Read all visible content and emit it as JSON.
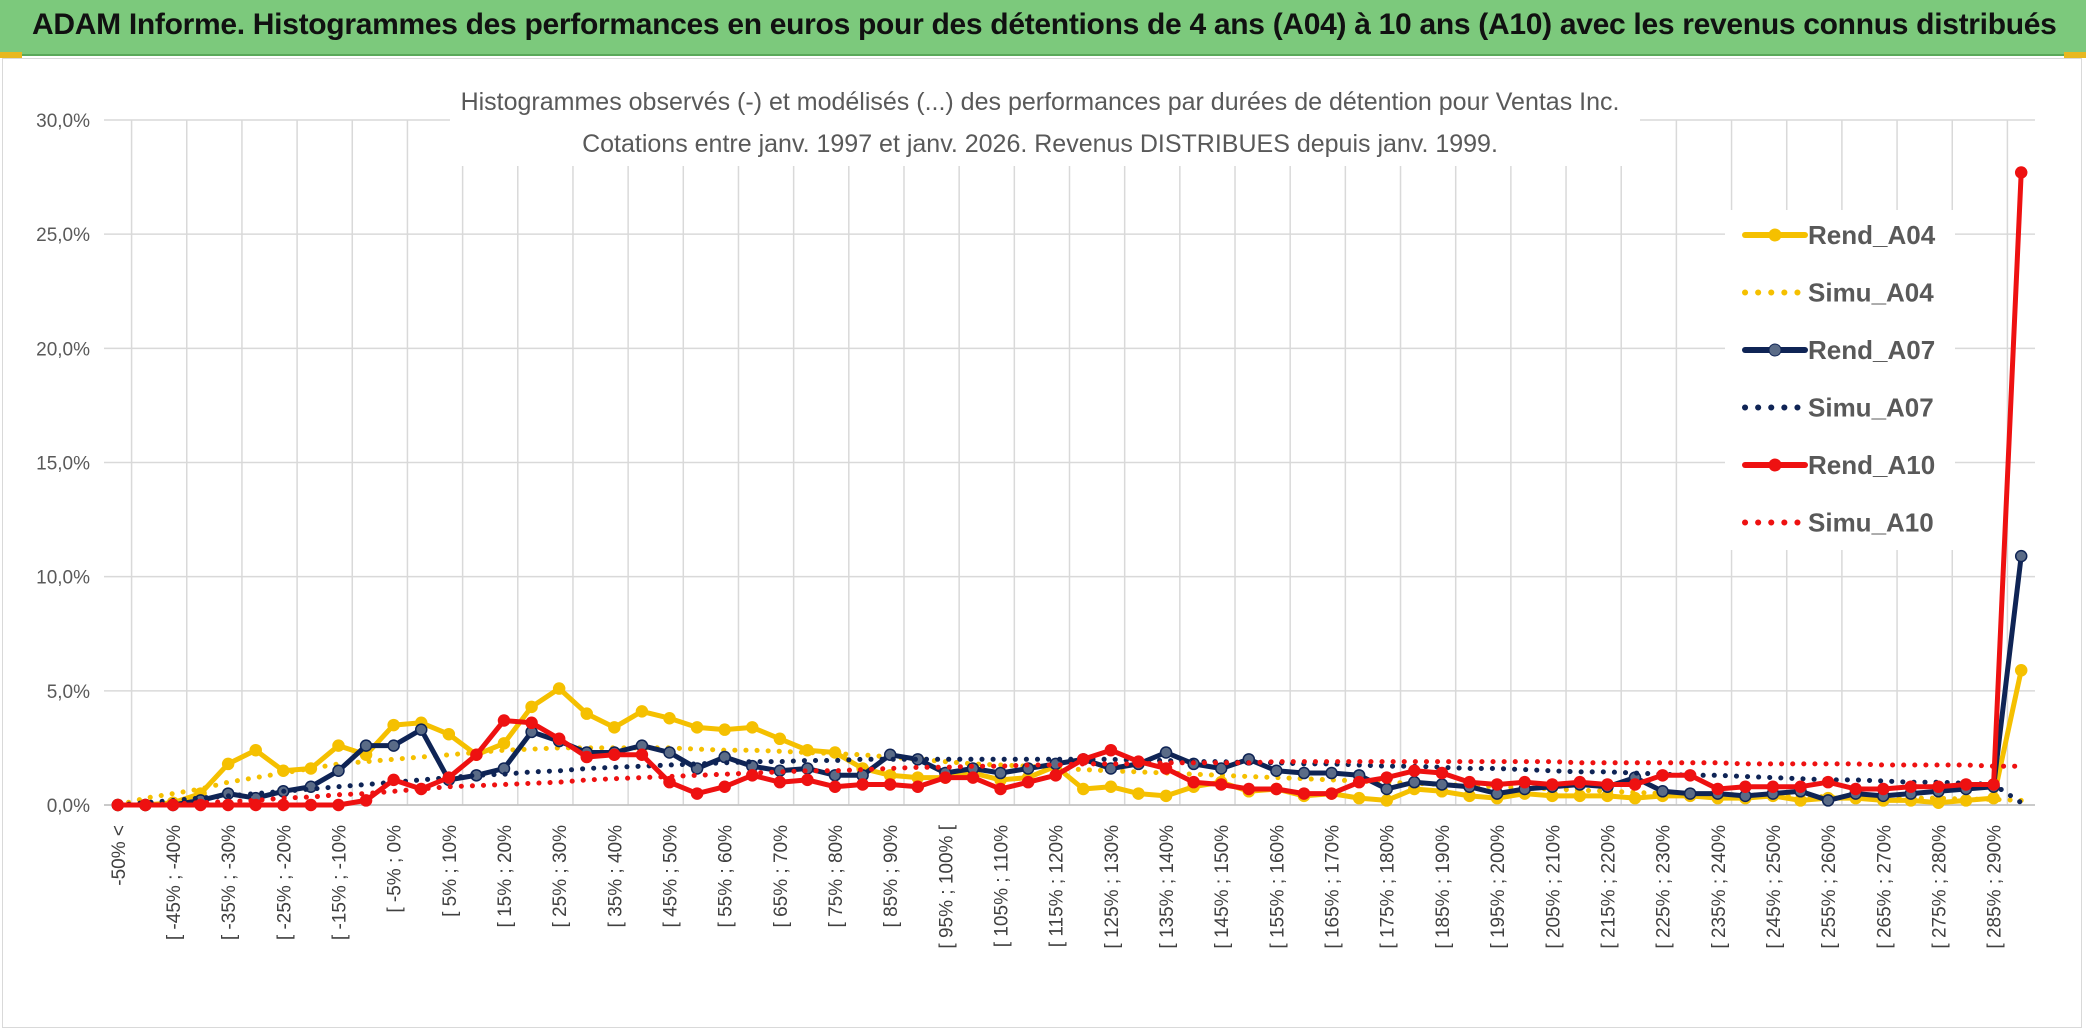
{
  "header": {
    "title": "ADAM Informe. Histogrammes des performances en euros pour des détentions de 4 ans (A04) à 10 ans (A10) avec les revenus connus distribués"
  },
  "chart_data": {
    "type": "line",
    "title_line1": "Histogrammes observés (-) et modélisés (...) des performances par durées de détention pour Ventas Inc.",
    "title_line2": "Cotations entre janv. 1997 et janv. 2026. Revenus DISTRIBUES depuis janv. 1999.",
    "ylim": [
      0,
      30
    ],
    "yticks": [
      "0,0%",
      "5,0%",
      "10,0%",
      "15,0%",
      "20,0%",
      "25,0%",
      "30,0%"
    ],
    "xtick_labels": [
      "-50% <",
      "[ -45% ; -40%",
      "[ -35% ; -30%",
      "[ -25% ; -20%",
      "[ -15% ; -10%",
      "[ -5% ; 0%",
      "[ 5% ; 10%",
      "[ 15% ; 20%",
      "[ 25% ; 30%",
      "[ 35% ; 40%",
      "[ 45% ; 50%",
      "[ 55% ; 60%",
      "[ 65% ; 70%",
      "[ 75% ; 80%",
      "[ 85% ; 90%",
      "[ 95% ; 100% [",
      "[ 105% ; 110%",
      "[ 115% ; 120%",
      "[ 125% ; 130%",
      "[ 135% ; 140%",
      "[ 145% ; 150%",
      "[ 155% ; 160%",
      "[ 165% ; 170%",
      "[ 175% ; 180%",
      "[ 185% ; 190%",
      "[ 195% ; 200%",
      "[ 205% ; 210%",
      "[ 215% ; 220%",
      "[ 225% ; 230%",
      "[ 235% ; 240%",
      "[ 245% ; 250%",
      "[ 255% ; 260%",
      "[ 265% ; 270%",
      "[ 275% ; 280%",
      "[ 285% ; 290%"
    ],
    "n_points": 70,
    "series": [
      {
        "name": "Rend_A04",
        "color": "#f5c000",
        "style": "solid",
        "markers": true,
        "values": [
          0,
          0,
          0.1,
          0.5,
          1.8,
          2.4,
          1.5,
          1.6,
          2.6,
          2.2,
          3.5,
          3.6,
          3.1,
          2.2,
          2.7,
          4.3,
          5.1,
          4.0,
          3.4,
          4.1,
          3.8,
          3.4,
          3.3,
          3.4,
          2.9,
          2.4,
          2.3,
          1.6,
          1.3,
          1.2,
          1.2,
          1.4,
          1.1,
          1.2,
          1.7,
          0.7,
          0.8,
          0.5,
          0.4,
          0.8,
          1.0,
          0.6,
          0.7,
          0.4,
          0.5,
          0.3,
          0.2,
          0.7,
          0.6,
          0.4,
          0.3,
          0.5,
          0.4,
          0.4,
          0.4,
          0.3,
          0.4,
          0.4,
          0.3,
          0.3,
          0.4,
          0.2,
          0.3,
          0.3,
          0.2,
          0.2,
          0.1,
          0.2,
          0.3,
          5.9
        ]
      },
      {
        "name": "Simu_A04",
        "color": "#f5c000",
        "style": "dotted",
        "markers": false,
        "values": [
          0,
          0.3,
          0.5,
          0.7,
          1.0,
          1.2,
          1.4,
          1.6,
          1.8,
          1.9,
          2.0,
          2.1,
          2.2,
          2.3,
          2.4,
          2.45,
          2.5,
          2.5,
          2.5,
          2.5,
          2.5,
          2.45,
          2.4,
          2.4,
          2.35,
          2.3,
          2.25,
          2.2,
          2.1,
          2.0,
          1.9,
          1.8,
          1.75,
          1.7,
          1.6,
          1.55,
          1.5,
          1.45,
          1.4,
          1.35,
          1.3,
          1.25,
          1.2,
          1.15,
          1.1,
          1.05,
          1.0,
          0.95,
          0.9,
          0.85,
          0.8,
          0.75,
          0.7,
          0.65,
          0.6,
          0.55,
          0.5,
          0.5,
          0.45,
          0.45,
          0.4,
          0.4,
          0.35,
          0.35,
          0.3,
          0.3,
          0.3,
          0.25,
          0.25,
          0.2
        ]
      },
      {
        "name": "Rend_A07",
        "color": "#0f2455",
        "style": "solid",
        "markers": true,
        "values": [
          0,
          0,
          0,
          0.2,
          0.5,
          0.3,
          0.6,
          0.8,
          1.5,
          2.6,
          2.6,
          3.3,
          1.1,
          1.3,
          1.6,
          3.2,
          2.8,
          2.3,
          2.3,
          2.6,
          2.3,
          1.6,
          2.1,
          1.7,
          1.5,
          1.6,
          1.3,
          1.3,
          2.2,
          2.0,
          1.4,
          1.6,
          1.4,
          1.6,
          1.8,
          2.0,
          1.6,
          1.8,
          2.3,
          1.8,
          1.6,
          2.0,
          1.5,
          1.4,
          1.4,
          1.3,
          0.7,
          1.0,
          0.9,
          0.8,
          0.5,
          0.7,
          0.8,
          0.9,
          0.8,
          1.2,
          0.6,
          0.5,
          0.5,
          0.4,
          0.5,
          0.6,
          0.2,
          0.5,
          0.4,
          0.5,
          0.6,
          0.7,
          0.8,
          10.9
        ]
      },
      {
        "name": "Simu_A07",
        "color": "#0f2455",
        "style": "dotted",
        "markers": false,
        "values": [
          0,
          0.1,
          0.2,
          0.3,
          0.4,
          0.5,
          0.6,
          0.7,
          0.8,
          0.9,
          1.0,
          1.1,
          1.2,
          1.3,
          1.35,
          1.45,
          1.5,
          1.6,
          1.65,
          1.7,
          1.75,
          1.8,
          1.85,
          1.9,
          1.9,
          1.95,
          1.95,
          2.0,
          2.0,
          2.0,
          2.0,
          2.0,
          2.0,
          2.0,
          2.0,
          2.0,
          2.0,
          1.95,
          1.95,
          1.9,
          1.9,
          1.85,
          1.85,
          1.8,
          1.8,
          1.75,
          1.7,
          1.7,
          1.65,
          1.6,
          1.6,
          1.55,
          1.5,
          1.45,
          1.45,
          1.4,
          1.35,
          1.3,
          1.3,
          1.25,
          1.2,
          1.15,
          1.1,
          1.1,
          1.05,
          1.0,
          1.0,
          0.95,
          0.9,
          0.1
        ]
      },
      {
        "name": "Rend_A10",
        "color": "#ee1111",
        "style": "solid",
        "markers": true,
        "values": [
          0,
          0,
          0,
          0,
          0,
          0,
          0,
          0,
          0,
          0.2,
          1.1,
          0.7,
          1.2,
          2.2,
          3.7,
          3.6,
          2.9,
          2.1,
          2.2,
          2.2,
          1.0,
          0.5,
          0.8,
          1.3,
          1.0,
          1.1,
          0.8,
          0.9,
          0.9,
          0.8,
          1.2,
          1.2,
          0.7,
          1.0,
          1.3,
          2.0,
          2.4,
          1.9,
          1.6,
          1.0,
          0.9,
          0.7,
          0.7,
          0.5,
          0.5,
          1.0,
          1.2,
          1.5,
          1.4,
          1.0,
          0.9,
          1.0,
          0.9,
          1.0,
          0.9,
          0.9,
          1.3,
          1.3,
          0.7,
          0.8,
          0.8,
          0.8,
          1.0,
          0.7,
          0.7,
          0.8,
          0.8,
          0.9,
          0.9,
          27.7
        ]
      },
      {
        "name": "Simu_A10",
        "color": "#ee1111",
        "style": "dotted",
        "markers": false,
        "values": [
          0,
          0,
          0.05,
          0.1,
          0.15,
          0.2,
          0.3,
          0.35,
          0.45,
          0.5,
          0.6,
          0.7,
          0.8,
          0.85,
          0.9,
          0.95,
          1.0,
          1.1,
          1.15,
          1.2,
          1.25,
          1.3,
          1.35,
          1.4,
          1.45,
          1.5,
          1.5,
          1.55,
          1.6,
          1.65,
          1.65,
          1.7,
          1.7,
          1.75,
          1.75,
          1.8,
          1.8,
          1.8,
          1.85,
          1.85,
          1.85,
          1.85,
          1.9,
          1.9,
          1.9,
          1.9,
          1.9,
          1.9,
          1.9,
          1.9,
          1.9,
          1.9,
          1.9,
          1.85,
          1.85,
          1.85,
          1.85,
          1.85,
          1.85,
          1.8,
          1.8,
          1.8,
          1.8,
          1.8,
          1.75,
          1.75,
          1.75,
          1.75,
          1.7,
          1.7
        ]
      }
    ],
    "legend_position": "top-right"
  }
}
